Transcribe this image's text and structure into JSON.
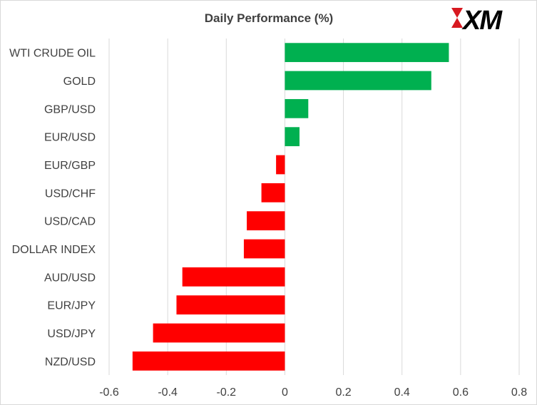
{
  "logo": {
    "text": "XM"
  },
  "chart_data": {
    "type": "bar",
    "orientation": "horizontal",
    "title": "Daily Performance  (%)",
    "xlabel": "",
    "ylabel": "",
    "categories": [
      "WTI CRUDE OIL",
      "GOLD",
      "GBP/USD",
      "EUR/USD",
      "EUR/GBP",
      "USD/CHF",
      "USD/CAD",
      "DOLLAR INDEX",
      "AUD/USD",
      "EUR/JPY",
      "USD/JPY",
      "NZD/USD"
    ],
    "values": [
      0.56,
      0.5,
      0.08,
      0.05,
      -0.03,
      -0.08,
      -0.13,
      -0.14,
      -0.35,
      -0.37,
      -0.45,
      -0.52
    ],
    "xlim": [
      -0.6,
      0.8
    ],
    "xticks": [
      -0.6,
      -0.4,
      -0.2,
      0,
      0.2,
      0.4,
      0.6,
      0.8
    ],
    "xtick_labels": [
      "-0.6",
      "-0.4",
      "-0.2",
      "0",
      "0.2",
      "0.4",
      "0.6",
      "0.8"
    ],
    "grid": "vertical",
    "legend": "none",
    "colors": {
      "positive": "#00b050",
      "negative": "#ff0000",
      "grid": "#d9d9d9",
      "text": "#404040"
    }
  }
}
